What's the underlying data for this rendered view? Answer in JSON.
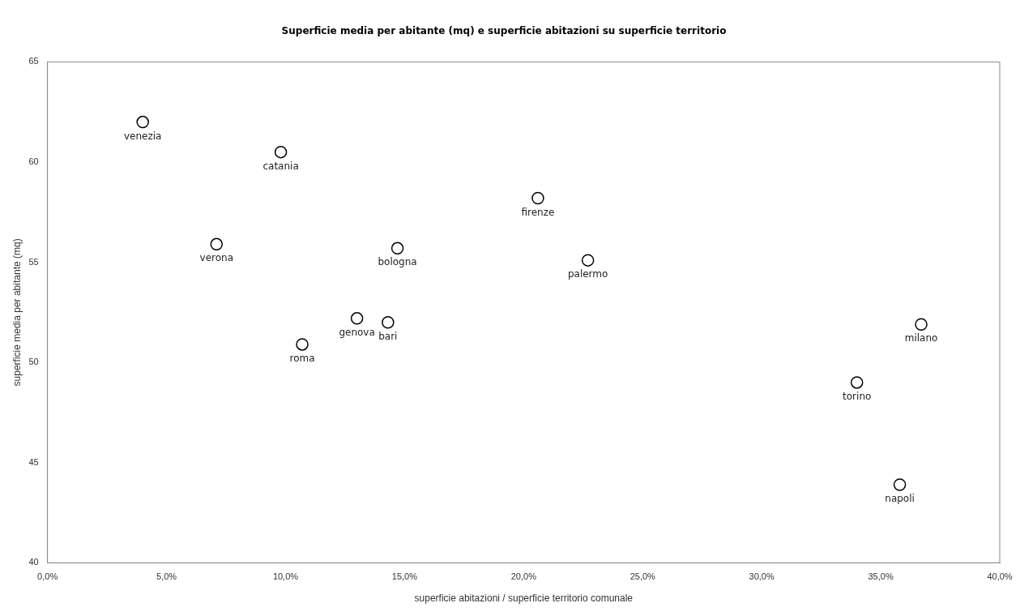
{
  "chart_data": {
    "type": "scatter",
    "title": "Superficie media per abitante (mq) e superficie abitazioni su superficie territorio",
    "xlabel": "superficie abitazioni / superficie territorio comunale",
    "ylabel": "superficie media per abitante (mq)",
    "x": [
      4.0,
      9.8,
      7.1,
      10.7,
      13.0,
      14.3,
      14.7,
      20.6,
      22.7,
      34.0,
      36.7,
      35.8
    ],
    "series": [
      {
        "color": "#000000",
        "values": [
          62.0,
          60.5,
          55.9,
          50.9,
          52.2,
          52.0,
          55.7,
          58.2,
          55.1,
          49.0,
          51.9,
          43.9
        ],
        "value_labels": [
          "venezia",
          "catania",
          "verona",
          "roma",
          "genova",
          "bari",
          "bologna",
          "firenze",
          "palermo",
          "torino",
          "milano",
          "napoli"
        ]
      }
    ],
    "xlim": [
      0,
      40
    ],
    "xticks": [
      {
        "value": 0,
        "label": "0,0%"
      },
      {
        "value": 5,
        "label": "5,0%"
      },
      {
        "value": 10,
        "label": "10,0%"
      },
      {
        "value": 15,
        "label": "15,0%"
      },
      {
        "value": 20,
        "label": "20,0%"
      },
      {
        "value": 25,
        "label": "25,0%"
      },
      {
        "value": 30,
        "label": "30,0%"
      },
      {
        "value": 35,
        "label": "35,0%"
      },
      {
        "value": 40,
        "label": "40,0%"
      }
    ],
    "ylim": [
      40,
      65
    ],
    "yticks": [
      40,
      45,
      50,
      55,
      60,
      65
    ],
    "grid": false,
    "legend": false,
    "marker": "circle"
  }
}
